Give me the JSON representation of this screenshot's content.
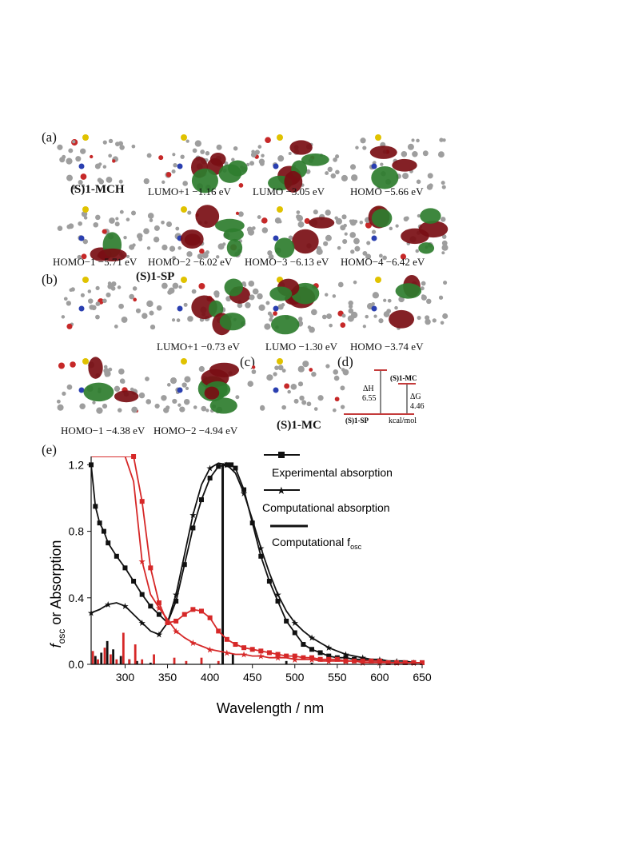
{
  "panels": {
    "a": "(a)",
    "b": "(b)",
    "c": "(c)",
    "d": "(d)",
    "e": "(e)"
  },
  "row_a1": [
    {
      "label": "(S)1-MCH"
    },
    {
      "label": "LUMO+1 −1.16 eV"
    },
    {
      "label": "LUMO −3.05 eV"
    },
    {
      "label": "HOMO −5.66 eV"
    }
  ],
  "row_a2": [
    {
      "label": "HOMO−1 −5.71 eV"
    },
    {
      "label": "HOMO−2 −6.02 eV"
    },
    {
      "label": "HOMO−3 −6.13 eV"
    },
    {
      "label": "HOMO−4 −6.42 eV"
    }
  ],
  "row_b1": [
    {
      "label": "(S)1-SP"
    },
    {
      "label": "LUMO+1 −0.73 eV"
    },
    {
      "label": "LUMO −1.30 eV"
    },
    {
      "label": "HOMO −3.74 eV"
    }
  ],
  "row_b2": [
    {
      "label": "HOMO−1 −4.38 eV"
    },
    {
      "label": "HOMO−2 −4.94 eV"
    },
    {
      "label": "(S)1-MC"
    }
  ],
  "energy_diagram": {
    "top_label": "(S)1-MC",
    "bottom_label": "(S)1-SP",
    "dH_symbol": "ΔH",
    "dH_value": "6.55",
    "dG_symbol": "ΔG",
    "dG_value": "4.46",
    "unit": "kcal/mol"
  },
  "colors": {
    "black": "#111111",
    "red": "#d62828",
    "orbital_green": "#2e7d2e",
    "orbital_red": "#7a0e14"
  },
  "chart_data": {
    "type": "line",
    "xlabel": "Wavelength / nm",
    "ylabel_main": "f",
    "ylabel_sub": "osc",
    "ylabel_rest": " or Absorption",
    "xlim": [
      260,
      650
    ],
    "ylim": [
      0,
      1.25
    ],
    "xticks": [
      300,
      350,
      400,
      450,
      500,
      550,
      600,
      650
    ],
    "yticks": [
      "0.0",
      "0.4",
      "0.8",
      "1.2"
    ],
    "yticks_values": [
      0,
      0.4,
      0.8,
      1.2
    ],
    "legend": [
      {
        "label": "Experimental absorption",
        "marker": "square"
      },
      {
        "label": "Computational absorption",
        "marker": "star"
      },
      {
        "label": "Computational f",
        "sub": "osc",
        "marker": "bar"
      }
    ],
    "series": [
      {
        "color": "black",
        "marker": "square",
        "x": [
          260,
          265,
          270,
          275,
          280,
          290,
          300,
          310,
          320,
          330,
          340,
          350,
          360,
          370,
          380,
          390,
          400,
          410,
          420,
          425,
          430,
          440,
          450,
          460,
          470,
          480,
          490,
          500,
          510,
          520,
          530,
          540,
          550,
          560,
          570,
          580,
          590,
          600,
          610,
          620,
          630,
          640,
          650
        ],
        "y": [
          1.2,
          0.95,
          0.85,
          0.8,
          0.73,
          0.65,
          0.58,
          0.5,
          0.42,
          0.35,
          0.3,
          0.25,
          0.38,
          0.6,
          0.82,
          0.99,
          1.12,
          1.19,
          1.2,
          1.2,
          1.18,
          1.05,
          0.85,
          0.65,
          0.5,
          0.38,
          0.26,
          0.19,
          0.12,
          0.09,
          0.07,
          0.05,
          0.04,
          0.04,
          0.03,
          0.03,
          0.02,
          0.02,
          0.01,
          0.01,
          0.01,
          0.01,
          0.01
        ]
      },
      {
        "color": "black",
        "marker": "star",
        "x": [
          260,
          270,
          280,
          290,
          300,
          310,
          320,
          330,
          340,
          350,
          360,
          370,
          380,
          390,
          400,
          410,
          420,
          430,
          440,
          450,
          460,
          470,
          480,
          490,
          500,
          510,
          520,
          530,
          540,
          550,
          560,
          570,
          580,
          590,
          600,
          610,
          620,
          630,
          640,
          650
        ],
        "y": [
          0.31,
          0.33,
          0.36,
          0.37,
          0.35,
          0.3,
          0.25,
          0.2,
          0.18,
          0.25,
          0.42,
          0.66,
          0.9,
          1.08,
          1.18,
          1.21,
          1.2,
          1.15,
          1.03,
          0.87,
          0.7,
          0.55,
          0.42,
          0.32,
          0.25,
          0.2,
          0.16,
          0.13,
          0.1,
          0.08,
          0.06,
          0.05,
          0.04,
          0.03,
          0.03,
          0.02,
          0.02,
          0.02,
          0.01,
          0.01
        ]
      },
      {
        "color": "red",
        "marker": "square",
        "x": [
          260,
          270,
          280,
          290,
          300,
          310,
          320,
          330,
          340,
          350,
          360,
          370,
          380,
          390,
          400,
          410,
          420,
          430,
          440,
          450,
          460,
          470,
          480,
          490,
          500,
          510,
          520,
          530,
          540,
          550,
          560,
          570,
          580,
          590,
          600,
          610,
          620,
          630,
          640,
          650
        ],
        "y": [
          1.3,
          1.3,
          1.3,
          1.3,
          1.3,
          1.25,
          0.98,
          0.58,
          0.37,
          0.25,
          0.26,
          0.3,
          0.33,
          0.32,
          0.28,
          0.2,
          0.15,
          0.12,
          0.1,
          0.09,
          0.08,
          0.07,
          0.06,
          0.05,
          0.05,
          0.04,
          0.04,
          0.03,
          0.03,
          0.03,
          0.02,
          0.02,
          0.02,
          0.02,
          0.02,
          0.01,
          0.01,
          0.01,
          0.01,
          0.01
        ]
      },
      {
        "color": "red",
        "marker": "star",
        "x": [
          260,
          270,
          280,
          290,
          300,
          310,
          320,
          330,
          340,
          350,
          360,
          370,
          380,
          390,
          400,
          410,
          420,
          430,
          440,
          450,
          460,
          470,
          480,
          490,
          500,
          510,
          520,
          530,
          540,
          550,
          560,
          570,
          580,
          590,
          600,
          610,
          620,
          630,
          640,
          650
        ],
        "y": [
          1.3,
          1.3,
          1.3,
          1.3,
          1.3,
          1.1,
          0.62,
          0.42,
          0.34,
          0.27,
          0.2,
          0.16,
          0.13,
          0.11,
          0.09,
          0.08,
          0.07,
          0.06,
          0.06,
          0.05,
          0.05,
          0.04,
          0.04,
          0.04,
          0.03,
          0.03,
          0.03,
          0.02,
          0.02,
          0.02,
          0.02,
          0.02,
          0.01,
          0.01,
          0.01,
          0.01,
          0.01,
          0.01,
          0.01,
          0.01
        ]
      }
    ],
    "fosc_bars": [
      {
        "color": "black",
        "x": [
          265,
          272,
          279,
          286,
          295,
          305,
          314,
          330,
          415,
          427,
          490,
          520
        ],
        "h": [
          0.05,
          0.07,
          0.14,
          0.09,
          0.05,
          0.03,
          0.02,
          0.01,
          1.21,
          0.06,
          0.02,
          0.01
        ]
      },
      {
        "color": "red",
        "x": [
          262,
          268,
          276,
          283,
          290,
          298,
          305,
          312,
          320,
          334,
          358,
          372,
          390,
          410
        ],
        "h": [
          0.08,
          0.03,
          0.1,
          0.06,
          0.03,
          0.19,
          0.03,
          0.12,
          0.03,
          0.06,
          0.04,
          0.02,
          0.04,
          0.02
        ]
      }
    ]
  }
}
